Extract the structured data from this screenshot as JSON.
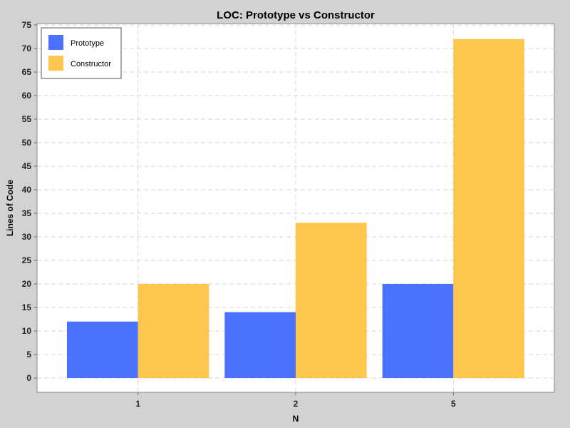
{
  "chart_data": {
    "type": "bar",
    "title": "LOC: Prototype vs Constructor",
    "xlabel": "N",
    "ylabel": "Lines of Code",
    "categories": [
      "1",
      "2",
      "5"
    ],
    "series": [
      {
        "name": "Prototype",
        "values": [
          12,
          14,
          20
        ],
        "color": "#4a72ff"
      },
      {
        "name": "Constructor",
        "values": [
          20,
          33,
          72
        ],
        "color": "#ffc64e"
      }
    ],
    "ylim": [
      0,
      75
    ],
    "ytick_step": 5,
    "grid": true,
    "legend_position": "top-left",
    "colors": {
      "page_background": "#d2d2d2",
      "plot_background": "#ffffff",
      "grid": "#d6d6d6"
    }
  }
}
